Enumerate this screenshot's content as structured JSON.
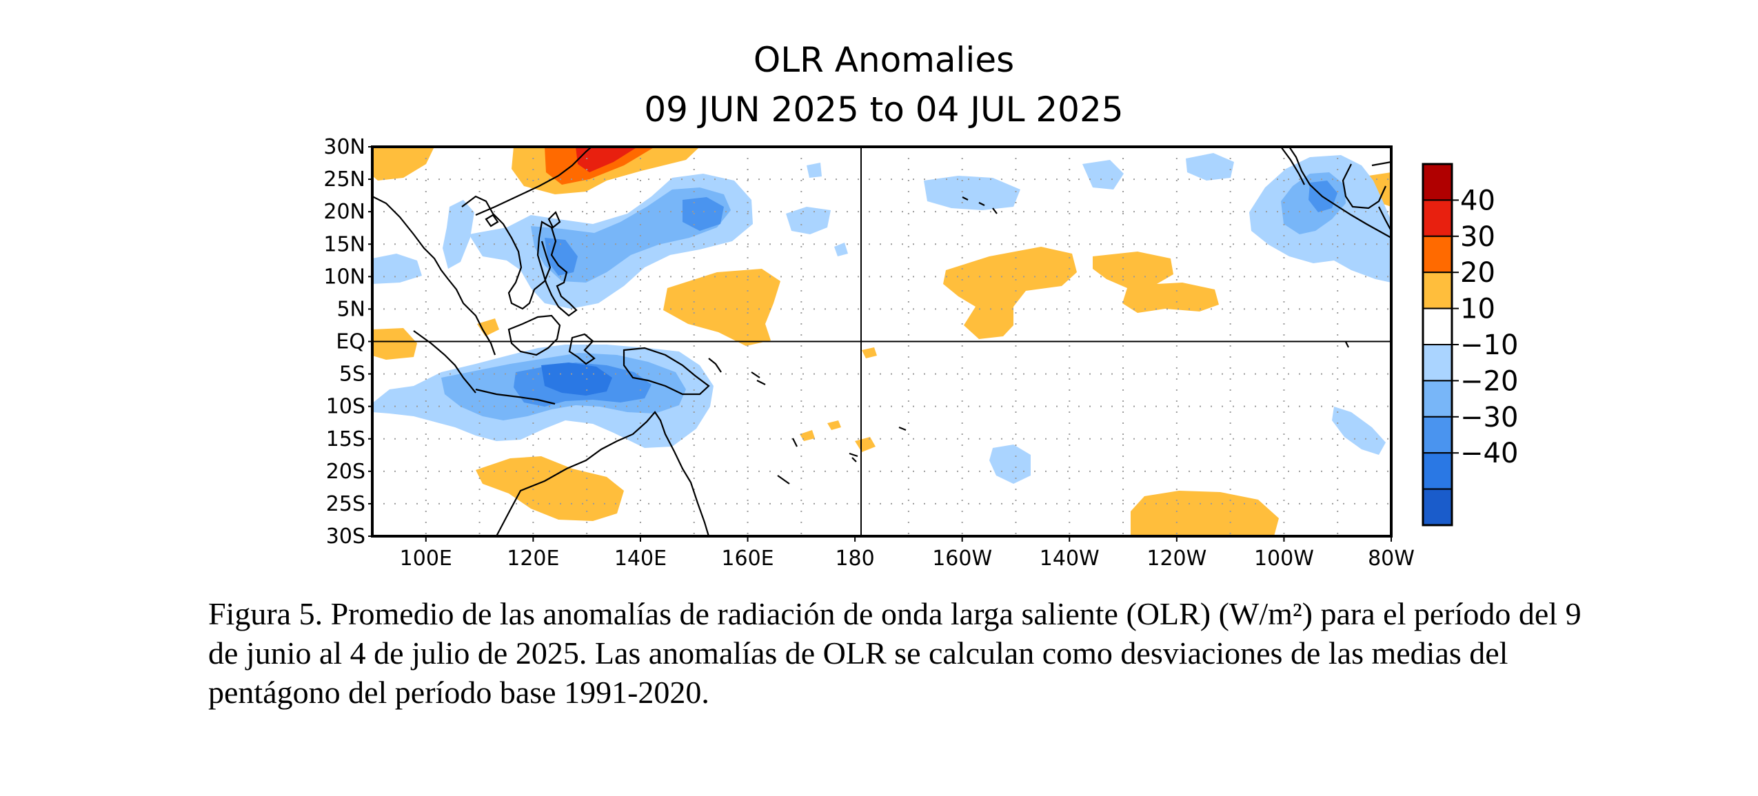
{
  "map": {
    "title": "OLR Anomalies",
    "subtitle": "09 JUN 2025 to 04 JUL 2025",
    "lat_labels": [
      "30N",
      "25N",
      "20N",
      "15N",
      "10N",
      "5N",
      "EQ",
      "5S",
      "10S",
      "15S",
      "20S",
      "25S",
      "30S"
    ],
    "lon_labels": [
      "100E",
      "120E",
      "140E",
      "160E",
      "180",
      "160W",
      "140W",
      "120W",
      "100W",
      "80W"
    ],
    "lat_range": [
      -30,
      30
    ],
    "lon_range": [
      90,
      280
    ],
    "gridlines": "dotted, every 5° latitude and 10° longitude",
    "reference_lines": [
      "Equator",
      "180"
    ],
    "colorbar": {
      "tick_labels": [
        "40",
        "30",
        "20",
        "10",
        "−10",
        "−20",
        "−30",
        "−40"
      ],
      "colors": [
        "#b00000",
        "#e8200f",
        "#ff6a00",
        "#ffbe3c",
        "#ffffff",
        "#aad4ff",
        "#78b6f8",
        "#4a94ef",
        "#2a78e4",
        "#1a5ccb"
      ]
    },
    "anomaly_regions": [
      {
        "sign": "positive",
        "level": 30,
        "area": "western Pacific near 27N, 128E"
      },
      {
        "sign": "positive",
        "level": 10,
        "area": "central Pacific 5N-12N, 150W-130W"
      },
      {
        "sign": "positive",
        "level": 10,
        "area": "eastern Pacific 25S-30S, 130W-110W"
      },
      {
        "sign": "positive",
        "level": 10,
        "area": "northwestern Australia 20S-25S"
      },
      {
        "sign": "negative",
        "level": -30,
        "area": "Maritime Continent 5S-10S, 120E-150E"
      },
      {
        "sign": "negative",
        "level": -30,
        "area": "Philippine Sea near 20N, 150E"
      },
      {
        "sign": "negative",
        "level": -30,
        "area": "Mexico near 20N, 100W"
      }
    ]
  },
  "caption": "Figura 5. Promedio de las anomalías de radiación de onda larga saliente (OLR) (W/m²) para el período del 9 de junio al 4 de julio de 2025. Las anomalías de OLR se calculan como desviaciones de las medias del pentágono del período base 1991-2020."
}
